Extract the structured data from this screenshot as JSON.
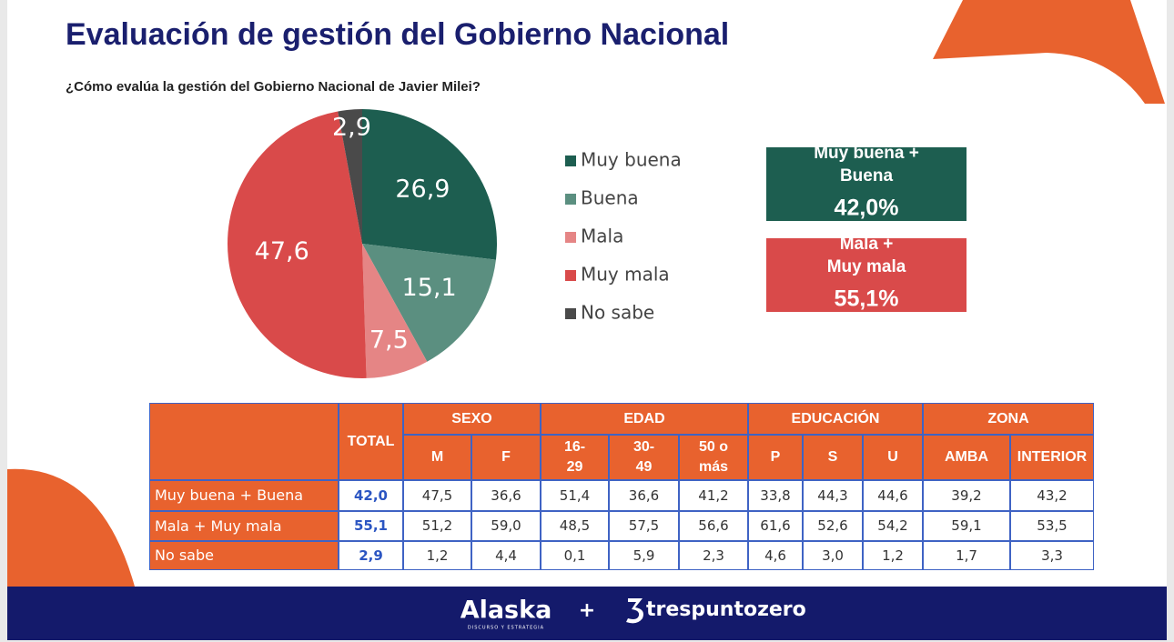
{
  "title": "Evaluación de gestión del Gobierno Nacional",
  "chart_data": {
    "type": "pie",
    "title": "¿Cómo evalúa la gestión del Gobierno Nacional de Javier Milei?",
    "categories": [
      "Muy buena",
      "Buena",
      "Mala",
      "Muy mala",
      "No sabe"
    ],
    "values": [
      26.9,
      15.1,
      7.5,
      47.6,
      2.9
    ],
    "value_labels": [
      "26,9",
      "15,1",
      "7,5",
      "47,6",
      "2,9"
    ],
    "colors": [
      "#1d5e50",
      "#5b8f80",
      "#e58585",
      "#d94a4a",
      "#4a4a4a"
    ]
  },
  "summary": [
    {
      "label": "Muy buena + Buena",
      "value": "42,0%",
      "color": "#1d5e50"
    },
    {
      "label": "Mala + Muy mala",
      "value": "55,1%",
      "color": "#d94a4a"
    }
  ],
  "table": {
    "total_header": "TOTAL",
    "groups": [
      {
        "label": "SEXO",
        "columns": [
          "M",
          "F"
        ]
      },
      {
        "label": "EDAD",
        "columns": [
          "16-29",
          "30-49",
          "50 o más"
        ]
      },
      {
        "label": "EDUCACIÓN",
        "columns": [
          "P",
          "S",
          "U"
        ]
      },
      {
        "label": "ZONA",
        "columns": [
          "AMBA",
          "INTERIOR"
        ]
      }
    ],
    "rows": [
      {
        "label": "Muy buena + Buena",
        "total": "42,0",
        "values": [
          "47,5",
          "36,6",
          "51,4",
          "36,6",
          "41,2",
          "33,8",
          "44,3",
          "44,6",
          "39,2",
          "43,2"
        ]
      },
      {
        "label": "Mala + Muy mala",
        "total": "55,1",
        "values": [
          "51,2",
          "59,0",
          "48,5",
          "57,5",
          "56,6",
          "61,6",
          "52,6",
          "54,2",
          "59,1",
          "53,5"
        ]
      },
      {
        "label": "No sabe",
        "total": "2,9",
        "values": [
          "1,2",
          "4,4",
          "0,1",
          "5,9",
          "2,3",
          "4,6",
          "3,0",
          "1,2",
          "1,7",
          "3,3"
        ]
      }
    ]
  },
  "footer": {
    "brand1": "Alaska",
    "tagline": "DISCURSO Y ESTRATEGIA",
    "joiner": "+",
    "brand2": "trespuntozero"
  }
}
